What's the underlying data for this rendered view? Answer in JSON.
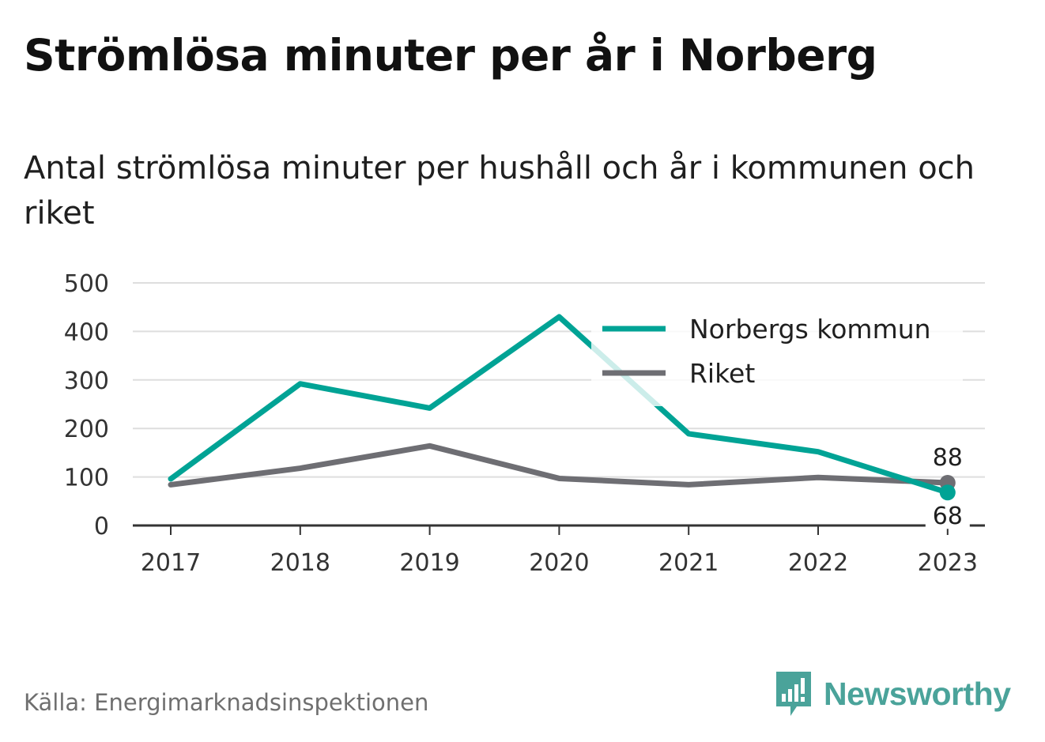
{
  "title": "Strömlösa minuter per år i Norberg",
  "subtitle": "Antal strömlösa minuter per hushåll och år i kommunen och riket",
  "source": "Källa: Energimarknadsinspektionen",
  "brand": {
    "name": "Newsworthy",
    "icon": "newsworthy-logo-icon",
    "color": "#4aa39a"
  },
  "chart_data": {
    "type": "line",
    "x": [
      "2017",
      "2018",
      "2019",
      "2020",
      "2021",
      "2022",
      "2023"
    ],
    "ylim": [
      0,
      500
    ],
    "yticks": [
      0,
      100,
      200,
      300,
      400,
      500
    ],
    "grid": true,
    "legend_position": "top-right",
    "series": [
      {
        "name": "Norbergs kommun",
        "color": "#00a395",
        "values": [
          96,
          292,
          242,
          430,
          189,
          152,
          68
        ],
        "end_label": "68"
      },
      {
        "name": "Riket",
        "color": "#6e6e73",
        "values": [
          84,
          118,
          164,
          97,
          84,
          99,
          88
        ],
        "end_label": "88"
      }
    ]
  }
}
